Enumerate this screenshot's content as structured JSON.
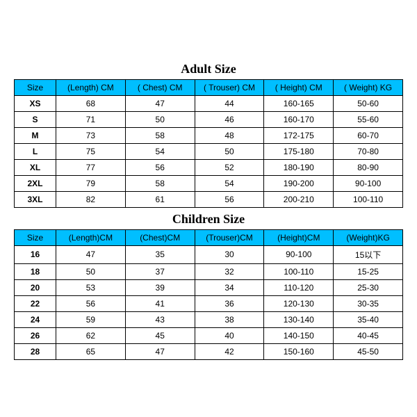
{
  "adult": {
    "title": "Adult Size",
    "columns": [
      "Size",
      "(Length)  CM",
      "( Chest)  CM",
      "( Trouser)  CM",
      "( Height)  CM",
      "( Weight)  KG"
    ],
    "rows": [
      [
        "XS",
        "68",
        "47",
        "44",
        "160-165",
        "50-60"
      ],
      [
        "S",
        "71",
        "50",
        "46",
        "160-170",
        "55-60"
      ],
      [
        "M",
        "73",
        "58",
        "48",
        "172-175",
        "60-70"
      ],
      [
        "L",
        "75",
        "54",
        "50",
        "175-180",
        "70-80"
      ],
      [
        "XL",
        "77",
        "56",
        "52",
        "180-190",
        "80-90"
      ],
      [
        "2XL",
        "79",
        "58",
        "54",
        "190-200",
        "90-100"
      ],
      [
        "3XL",
        "82",
        "61",
        "56",
        "200-210",
        "100-110"
      ]
    ]
  },
  "children": {
    "title": "Children Size",
    "columns": [
      "Size",
      "(Length)CM",
      "(Chest)CM",
      "(Trouser)CM",
      "(Height)CM",
      "(Weight)KG"
    ],
    "rows": [
      [
        "16",
        "47",
        "35",
        "30",
        "90-100",
        "15以下"
      ],
      [
        "18",
        "50",
        "37",
        "32",
        "100-110",
        "15-25"
      ],
      [
        "20",
        "53",
        "39",
        "34",
        "110-120",
        "25-30"
      ],
      [
        "22",
        "56",
        "41",
        "36",
        "120-130",
        "30-35"
      ],
      [
        "24",
        "59",
        "43",
        "38",
        "130-140",
        "35-40"
      ],
      [
        "26",
        "62",
        "45",
        "40",
        "140-150",
        "40-45"
      ],
      [
        "28",
        "65",
        "47",
        "42",
        "150-160",
        "45-50"
      ]
    ]
  },
  "header_bg": "#00bfff",
  "border_color": "#000000"
}
